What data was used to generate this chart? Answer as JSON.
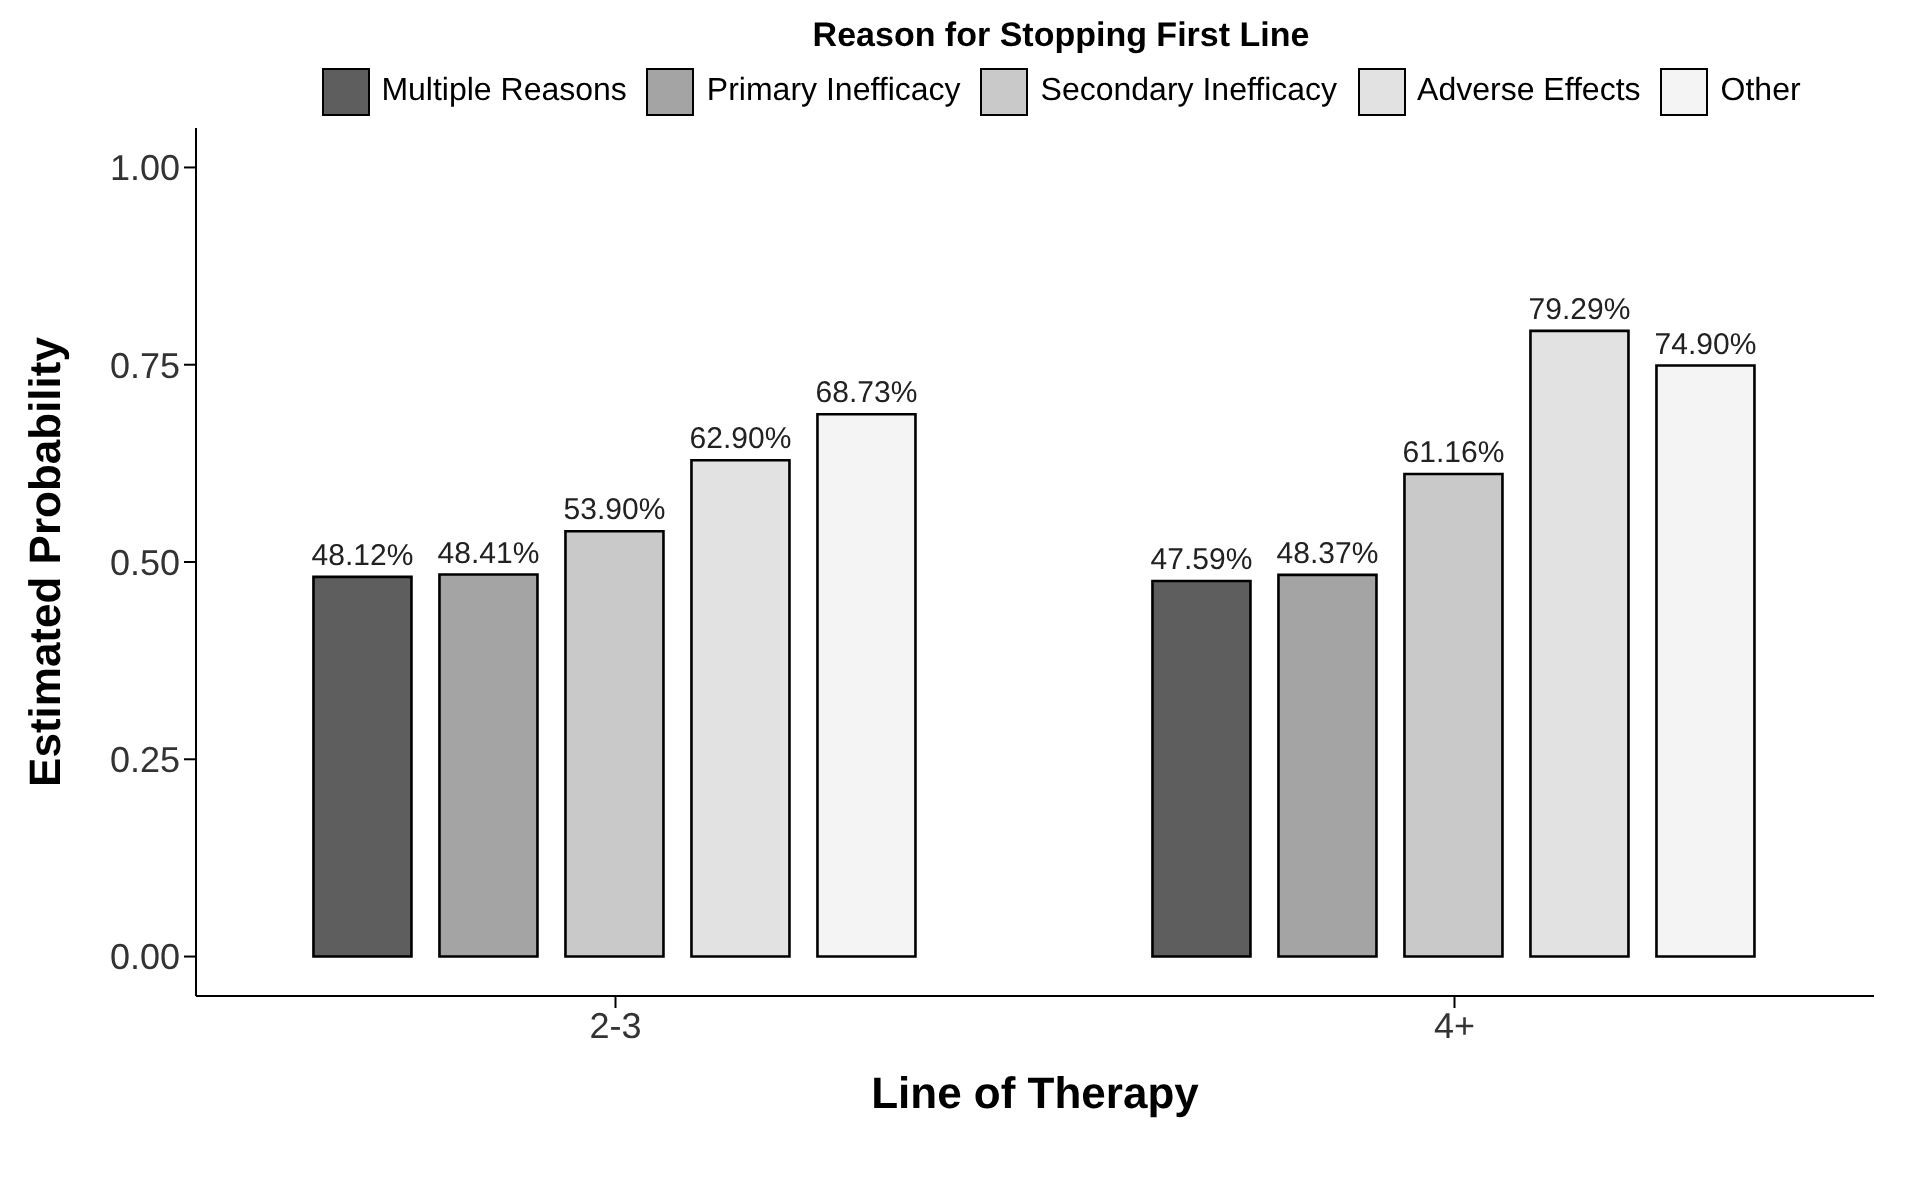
{
  "chart_data": {
    "type": "bar",
    "legend_title": "Reason for Stopping First Line",
    "xlabel": "Line of Therapy",
    "ylabel": "Estimated Probability",
    "categories": [
      "2-3",
      "4+"
    ],
    "series": [
      {
        "name": "Multiple Reasons",
        "color": "#5e5e5e",
        "values": [
          0.4812,
          0.4759
        ],
        "value_labels": [
          "48.12%",
          "47.59%"
        ]
      },
      {
        "name": "Primary Inefficacy",
        "color": "#a4a4a4",
        "values": [
          0.4841,
          0.4837
        ],
        "value_labels": [
          "48.41%",
          "48.37%"
        ]
      },
      {
        "name": "Secondary Inefficacy",
        "color": "#c9c9c9",
        "values": [
          0.539,
          0.6116
        ],
        "value_labels": [
          "53.90%",
          "61.16%"
        ]
      },
      {
        "name": "Adverse Effects",
        "color": "#e2e2e2",
        "values": [
          0.629,
          0.7929
        ],
        "value_labels": [
          "62.90%",
          "79.29%"
        ]
      },
      {
        "name": "Other",
        "color": "#f4f4f4",
        "values": [
          0.6873,
          0.749
        ],
        "value_labels": [
          "68.73%",
          "74.90%"
        ]
      }
    ],
    "ylim": [
      -0.05,
      1.05
    ],
    "yticks": [
      {
        "value": 0,
        "label": "0.00"
      },
      {
        "value": 0.25,
        "label": "0.25"
      },
      {
        "value": 0.5,
        "label": "0.50"
      },
      {
        "value": 0.75,
        "label": "0.75"
      },
      {
        "value": 1,
        "label": "1.00"
      }
    ],
    "grid": false,
    "legend": "top"
  }
}
